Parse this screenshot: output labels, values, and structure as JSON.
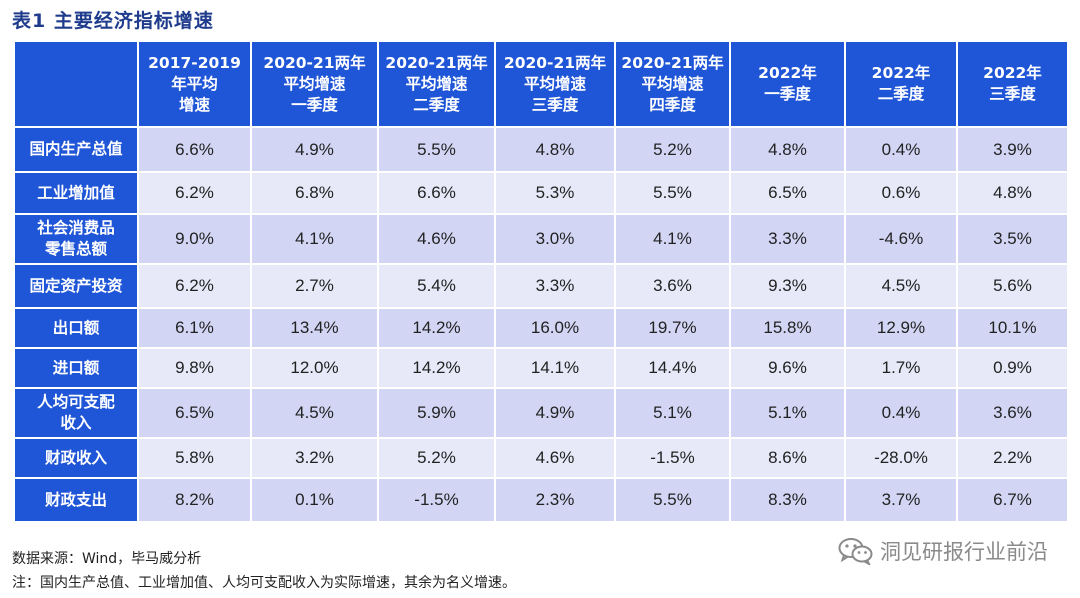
{
  "title": "表1  主要经济指标增速",
  "table": {
    "headers": [
      "",
      "2017-2019\n年平均\n增速",
      "2020-21两年\n平均增速\n一季度",
      "2020-21两年\n平均增速\n二季度",
      "2020-21两年\n平均增速\n三季度",
      "2020-21两年\n平均增速\n四季度",
      "2022年\n一季度",
      "2022年\n二季度",
      "2022年\n三季度"
    ],
    "rows": [
      {
        "label": "国内生产总值",
        "values": [
          "6.6%",
          "4.9%",
          "5.5%",
          "4.8%",
          "5.2%",
          "4.8%",
          "0.4%",
          "3.9%"
        ]
      },
      {
        "label": "工业增加值",
        "values": [
          "6.2%",
          "6.8%",
          "6.6%",
          "5.3%",
          "5.5%",
          "6.5%",
          "0.6%",
          "4.8%"
        ]
      },
      {
        "label": "社会消费品\n零售总额",
        "values": [
          "9.0%",
          "4.1%",
          "4.6%",
          "3.0%",
          "4.1%",
          "3.3%",
          "-4.6%",
          "3.5%"
        ]
      },
      {
        "label": "固定资产投资",
        "values": [
          "6.2%",
          "2.7%",
          "5.4%",
          "3.3%",
          "3.6%",
          "9.3%",
          "4.5%",
          "5.6%"
        ]
      },
      {
        "label": "出口额",
        "values": [
          "6.1%",
          "13.4%",
          "14.2%",
          "16.0%",
          "19.7%",
          "15.8%",
          "12.9%",
          "10.1%"
        ]
      },
      {
        "label": "进口额",
        "values": [
          "9.8%",
          "12.0%",
          "14.2%",
          "14.1%",
          "14.4%",
          "9.6%",
          "1.7%",
          "0.9%"
        ]
      },
      {
        "label": "人均可支配\n收入",
        "values": [
          "6.5%",
          "4.5%",
          "5.9%",
          "4.9%",
          "5.1%",
          "5.1%",
          "0.4%",
          "3.6%"
        ]
      },
      {
        "label": "财政收入",
        "values": [
          "5.8%",
          "3.2%",
          "5.2%",
          "4.6%",
          "-1.5%",
          "8.6%",
          "-28.0%",
          "2.2%"
        ]
      },
      {
        "label": "财政支出",
        "values": [
          "8.2%",
          "0.1%",
          "-1.5%",
          "2.3%",
          "5.5%",
          "8.3%",
          "3.7%",
          "6.7%"
        ]
      }
    ]
  },
  "notes": {
    "source": "数据来源：Wind，毕马威分析",
    "footnote": "注：国内生产总值、工业增加值、人均可支配收入为实际增速，其余为名义增速。"
  },
  "watermark": {
    "text": "洞见研报行业前沿",
    "icon": "wechat-icon"
  }
}
